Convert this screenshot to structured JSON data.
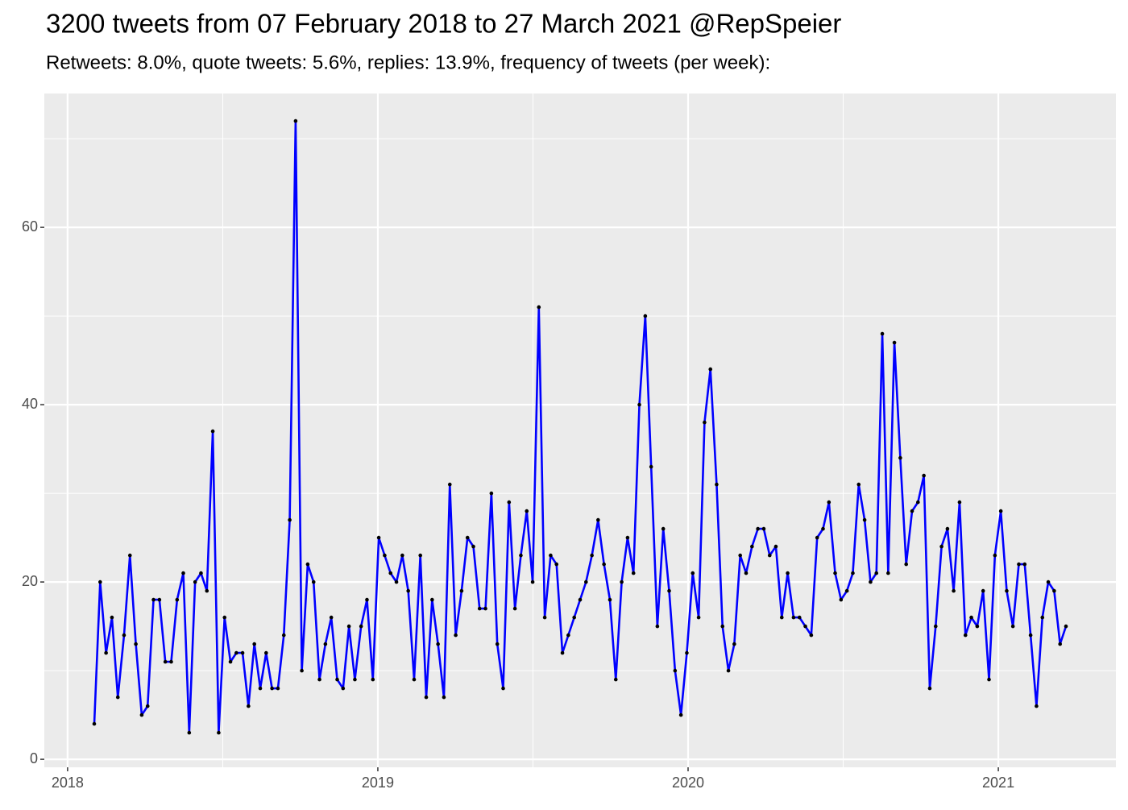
{
  "chart_data": {
    "type": "line",
    "title": "3200 tweets from 07 February 2018 to 27 March 2021 @RepSpeier",
    "subtitle": "Retweets: 8.0%, quote tweets: 5.6%, replies: 13.9%, frequency of tweets (per week):",
    "x": [
      2018.086,
      2018.105,
      2018.124,
      2018.143,
      2018.162,
      2018.182,
      2018.201,
      2018.22,
      2018.239,
      2018.258,
      2018.277,
      2018.296,
      2018.315,
      2018.334,
      2018.353,
      2018.373,
      2018.392,
      2018.411,
      2018.43,
      2018.449,
      2018.468,
      2018.487,
      2018.506,
      2018.525,
      2018.544,
      2018.564,
      2018.583,
      2018.602,
      2018.621,
      2018.64,
      2018.659,
      2018.678,
      2018.697,
      2018.716,
      2018.735,
      2018.755,
      2018.774,
      2018.793,
      2018.812,
      2018.831,
      2018.85,
      2018.869,
      2018.888,
      2018.907,
      2018.926,
      2018.946,
      2018.965,
      2018.984,
      2019.003,
      2019.022,
      2019.041,
      2019.06,
      2019.079,
      2019.098,
      2019.117,
      2019.137,
      2019.156,
      2019.175,
      2019.194,
      2019.213,
      2019.232,
      2019.251,
      2019.27,
      2019.289,
      2019.308,
      2019.328,
      2019.347,
      2019.366,
      2019.385,
      2019.404,
      2019.423,
      2019.442,
      2019.461,
      2019.48,
      2019.499,
      2019.519,
      2019.538,
      2019.557,
      2019.576,
      2019.595,
      2019.614,
      2019.633,
      2019.652,
      2019.671,
      2019.69,
      2019.71,
      2019.729,
      2019.748,
      2019.767,
      2019.786,
      2019.805,
      2019.824,
      2019.843,
      2019.862,
      2019.881,
      2019.901,
      2019.92,
      2019.939,
      2019.958,
      2019.977,
      2019.996,
      2020.015,
      2020.034,
      2020.053,
      2020.072,
      2020.092,
      2020.111,
      2020.13,
      2020.149,
      2020.168,
      2020.187,
      2020.206,
      2020.225,
      2020.244,
      2020.263,
      2020.283,
      2020.302,
      2020.321,
      2020.34,
      2020.359,
      2020.378,
      2020.397,
      2020.416,
      2020.435,
      2020.454,
      2020.474,
      2020.493,
      2020.512,
      2020.531,
      2020.55,
      2020.569,
      2020.588,
      2020.607,
      2020.626,
      2020.645,
      2020.665,
      2020.684,
      2020.703,
      2020.722,
      2020.741,
      2020.76,
      2020.779,
      2020.798,
      2020.817,
      2020.836,
      2020.856,
      2020.875,
      2020.894,
      2020.913,
      2020.932,
      2020.951,
      2020.97,
      2020.989,
      2021.008,
      2021.027,
      2021.047,
      2021.066,
      2021.085,
      2021.104,
      2021.123,
      2021.142,
      2021.161,
      2021.18,
      2021.199,
      2021.218
    ],
    "series": [
      {
        "color": "#0000ff",
        "point_color": "#000000",
        "values": [
          4,
          20,
          12,
          16,
          7,
          14,
          23,
          13,
          5,
          6,
          18,
          18,
          11,
          11,
          18,
          21,
          3,
          20,
          21,
          19,
          37,
          3,
          16,
          11,
          12,
          12,
          6,
          13,
          8,
          12,
          8,
          8,
          14,
          27,
          72,
          10,
          22,
          20,
          9,
          13,
          16,
          9,
          8,
          15,
          9,
          15,
          18,
          9,
          25,
          23,
          21,
          20,
          23,
          19,
          9,
          23,
          7,
          18,
          13,
          7,
          31,
          14,
          19,
          25,
          24,
          17,
          17,
          30,
          13,
          8,
          29,
          17,
          23,
          28,
          20,
          51,
          16,
          23,
          22,
          12,
          14,
          16,
          18,
          20,
          23,
          27,
          22,
          18,
          9,
          20,
          25,
          21,
          40,
          50,
          33,
          15,
          26,
          19,
          10,
          5,
          12,
          21,
          16,
          38,
          44,
          31,
          15,
          10,
          13,
          23,
          21,
          24,
          26,
          26,
          23,
          24,
          16,
          21,
          16,
          16,
          15,
          14,
          25,
          26,
          29,
          21,
          18,
          19,
          21,
          31,
          27,
          20,
          21,
          48,
          21,
          47,
          34,
          22,
          28,
          29,
          32,
          8,
          15,
          24,
          26,
          19,
          29,
          14,
          16,
          15,
          19,
          9,
          23,
          28,
          19,
          15,
          22,
          22,
          14,
          6,
          16,
          20,
          19,
          13,
          15
        ]
      }
    ],
    "xlim": [
      2017.925,
      2021.379
    ],
    "xticks": [
      2018,
      2019,
      2020,
      2021
    ],
    "xminor": [
      2018.5,
      2019.5,
      2020.5
    ],
    "ylim": [
      -0.9,
      75.1
    ],
    "yticks": [
      0,
      20,
      40,
      60
    ],
    "yminor": [
      10,
      30,
      50,
      70
    ],
    "grid": true,
    "panel_color": "#ebebeb"
  }
}
